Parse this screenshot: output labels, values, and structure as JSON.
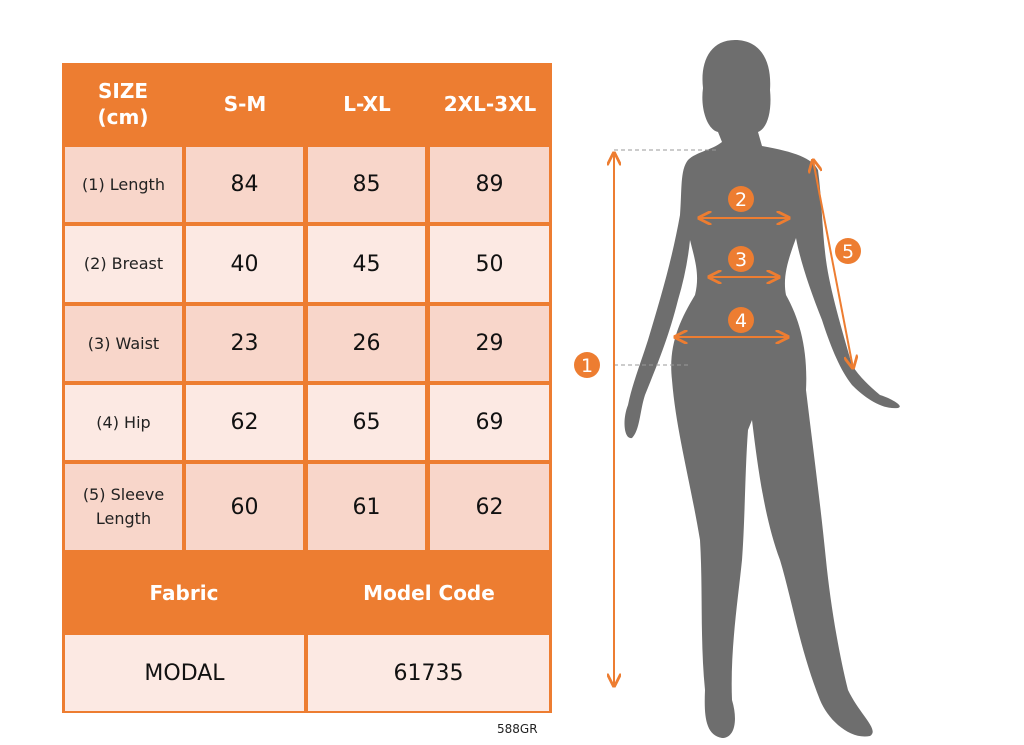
{
  "table": {
    "header": [
      "SIZE\n(cm)",
      "S-M",
      "L-XL",
      "2XL-3XL"
    ],
    "header_size": "SIZE",
    "header_unit": "(cm)",
    "rows": [
      {
        "label": "(1) Length",
        "values": [
          "84",
          "85",
          "89"
        ]
      },
      {
        "label": "(2) Breast",
        "values": [
          "40",
          "45",
          "50"
        ]
      },
      {
        "label": "(3) Waist",
        "values": [
          "23",
          "26",
          "29"
        ]
      },
      {
        "label": "(4) Hip",
        "values": [
          "62",
          "65",
          "69"
        ]
      },
      {
        "label": "(5) Sleeve Length",
        "label_line1": "(5) Sleeve",
        "label_line2": "Length",
        "values": [
          "60",
          "61",
          "62"
        ]
      }
    ],
    "footer_headers": [
      "Fabric",
      "Model Code"
    ],
    "footer_values": [
      "MODAL",
      "61735"
    ]
  },
  "diagram": {
    "markers": [
      "1",
      "2",
      "3",
      "4",
      "5"
    ]
  },
  "product_code": "588GR",
  "colors": {
    "accent": "#ED7D31",
    "row_dark": "#F8D6CA",
    "row_light": "#FCE9E3",
    "silhouette": "#6E6E6E"
  }
}
